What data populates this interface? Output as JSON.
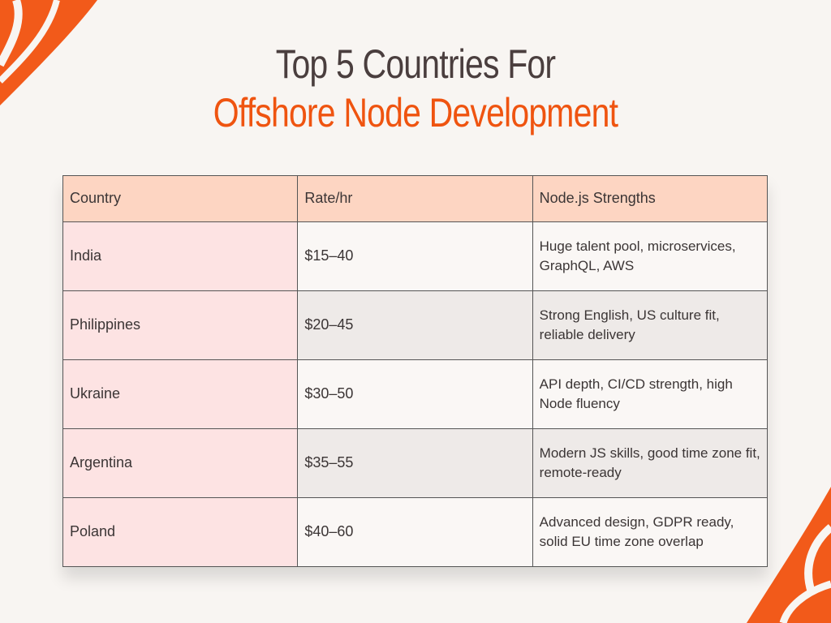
{
  "header": {
    "title_line1": "Top 5 Countries For",
    "title_line2": "Offshore Node Development"
  },
  "table": {
    "columns": [
      "Country",
      "Rate/hr",
      "Node.js Strengths"
    ],
    "rows": [
      [
        "India",
        "$15–40",
        "Huge talent pool, microservices, GraphQL, AWS"
      ],
      [
        "Philippines",
        "$20–45",
        "Strong English, US culture fit, reliable delivery"
      ],
      [
        "Ukraine",
        "$30–50",
        "API depth, CI/CD strength, high Node fluency"
      ],
      [
        "Argentina",
        "$35–55",
        "Modern JS skills, good time zone fit, remote-ready"
      ],
      [
        "Poland",
        "$40–60",
        "Advanced design, GDPR ready, solid EU time zone overlap"
      ]
    ]
  }
}
